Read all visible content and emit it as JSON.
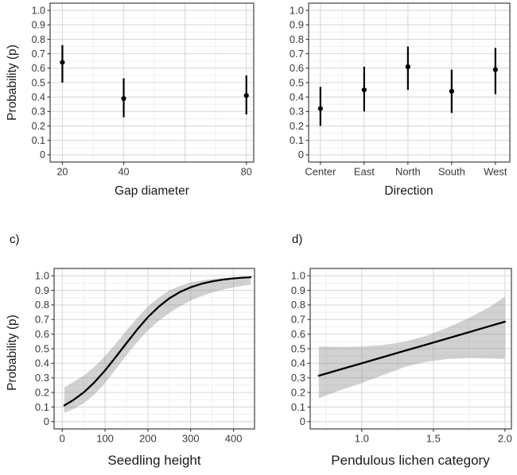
{
  "figure": {
    "background": "#ffffff",
    "border_color": "#4d4d4d",
    "grid_major_color": "#d9d9d9",
    "grid_minor_color": "#efefef",
    "tick_color": "#333333",
    "tick_label_color": "#383838",
    "data_color": "#000000",
    "ribbon_color": "#8c8c8c",
    "ribbon_opacity": 0.4
  },
  "chart_data": [
    {
      "id": "a",
      "type": "pointrange",
      "xlabel": "Gap diameter",
      "ylabel": "Probability (p)",
      "x": {
        "scale": "linear",
        "domain": [
          16,
          82.4
        ],
        "ticks": [
          20,
          40,
          80
        ],
        "tick_labels": [
          "20",
          "40",
          "80"
        ],
        "grid_major": [
          20,
          40,
          60,
          80
        ],
        "grid_minor": [
          30,
          50,
          70
        ]
      },
      "y": {
        "domain": [
          -0.05,
          1.05
        ],
        "ticks": [
          1.0,
          0.9,
          0.8,
          0.7,
          0.6,
          0.5,
          0.4,
          0.3,
          0.2,
          0.1,
          0
        ],
        "tick_labels": [
          "1.0",
          "0.9",
          "0.8",
          "0.7",
          "0.6",
          "0.5",
          "0.4",
          "0.3",
          "0.2",
          "0.1",
          "0"
        ],
        "grid_minor": [
          0.05,
          0.15,
          0.25,
          0.35,
          0.45,
          0.55,
          0.65,
          0.75,
          0.85,
          0.95
        ]
      },
      "points": [
        {
          "x": 20,
          "y": 0.64,
          "ymin": 0.5,
          "ymax": 0.76
        },
        {
          "x": 40,
          "y": 0.39,
          "ymin": 0.26,
          "ymax": 0.53
        },
        {
          "x": 80,
          "y": 0.41,
          "ymin": 0.28,
          "ymax": 0.55
        }
      ]
    },
    {
      "id": "b",
      "type": "pointrange",
      "xlabel": "Direction",
      "x": {
        "scale": "categorical",
        "domain": [
          0.73,
          5.33
        ],
        "ticks": [
          1,
          2,
          3,
          4,
          5
        ],
        "tick_labels": [
          "Center",
          "East",
          "North",
          "South",
          "West"
        ],
        "grid_major": [
          1,
          2,
          3,
          4,
          5
        ],
        "grid_minor": [
          1.5,
          2.5,
          3.5,
          4.5
        ]
      },
      "y": {
        "domain": [
          -0.05,
          1.05
        ],
        "ticks": [
          1.0,
          0.9,
          0.8,
          0.7,
          0.6,
          0.5,
          0.4,
          0.3,
          0.2,
          0.1,
          0
        ],
        "tick_labels": [
          "1.0",
          "0.9",
          "0.8",
          "0.7",
          "0.6",
          "0.5",
          "0.4",
          "0.3",
          "0.2",
          "0.1",
          "0"
        ],
        "grid_minor": [
          0.05,
          0.15,
          0.25,
          0.35,
          0.45,
          0.55,
          0.65,
          0.75,
          0.85,
          0.95
        ]
      },
      "points": [
        {
          "label": "Center",
          "x": 1,
          "y": 0.32,
          "ymin": 0.2,
          "ymax": 0.47
        },
        {
          "label": "East",
          "x": 2,
          "y": 0.45,
          "ymin": 0.3,
          "ymax": 0.61
        },
        {
          "label": "North",
          "x": 3,
          "y": 0.61,
          "ymin": 0.45,
          "ymax": 0.75
        },
        {
          "label": "South",
          "x": 4,
          "y": 0.44,
          "ymin": 0.29,
          "ymax": 0.59
        },
        {
          "label": "West",
          "x": 5,
          "y": 0.59,
          "ymin": 0.42,
          "ymax": 0.74
        }
      ]
    },
    {
      "id": "c",
      "panel_label": "c)",
      "type": "line_ribbon",
      "xlabel": "Seedling height",
      "ylabel": "Probability (p)",
      "x": {
        "scale": "linear",
        "domain": [
          -19,
          449
        ],
        "ticks": [
          0,
          100,
          200,
          300,
          400
        ],
        "tick_labels": [
          "0",
          "100",
          "200",
          "300",
          "400"
        ],
        "grid_major": [
          0,
          100,
          200,
          300,
          400
        ],
        "grid_minor": [
          50,
          150,
          250,
          350
        ]
      },
      "y": {
        "domain": [
          -0.05,
          1.05
        ],
        "ticks": [
          1.0,
          0.9,
          0.8,
          0.7,
          0.6,
          0.5,
          0.4,
          0.3,
          0.2,
          0.1,
          0
        ],
        "tick_labels": [
          "1.0",
          "0.9",
          "0.8",
          "0.7",
          "0.6",
          "0.5",
          "0.4",
          "0.3",
          "0.2",
          "0.1",
          "0"
        ],
        "grid_minor": [
          0.05,
          0.15,
          0.25,
          0.35,
          0.45,
          0.55,
          0.65,
          0.75,
          0.85,
          0.95
        ]
      },
      "line": {
        "x": [
          5,
          25,
          50,
          75,
          100,
          125,
          150,
          175,
          200,
          225,
          250,
          275,
          300,
          325,
          350,
          375,
          400,
          420,
          440
        ],
        "y": [
          0.111,
          0.146,
          0.2,
          0.269,
          0.351,
          0.443,
          0.538,
          0.631,
          0.716,
          0.787,
          0.845,
          0.889,
          0.921,
          0.945,
          0.962,
          0.974,
          0.982,
          0.987,
          0.99
        ],
        "lo": [
          0.06,
          0.085,
          0.125,
          0.185,
          0.265,
          0.36,
          0.455,
          0.545,
          0.625,
          0.69,
          0.745,
          0.79,
          0.83,
          0.86,
          0.885,
          0.905,
          0.92,
          0.93,
          0.94
        ],
        "hi": [
          0.235,
          0.27,
          0.315,
          0.375,
          0.45,
          0.535,
          0.625,
          0.71,
          0.79,
          0.85,
          0.9,
          0.93,
          0.955,
          0.968,
          0.978,
          0.984,
          0.988,
          0.99,
          0.995
        ]
      }
    },
    {
      "id": "d",
      "panel_label": "d)",
      "type": "line_ribbon",
      "xlabel": "Pendulous lichen category",
      "x": {
        "scale": "linear",
        "domain": [
          0.64,
          2.045
        ],
        "ticks": [
          1.0,
          1.5,
          2.0
        ],
        "tick_labels": [
          "1.0",
          "1.5",
          "2.0"
        ],
        "grid_major": [
          1.0,
          1.5,
          2.0
        ],
        "grid_minor": [
          0.75,
          1.25,
          1.75
        ]
      },
      "y": {
        "domain": [
          -0.05,
          1.05
        ],
        "ticks": [
          1.0,
          0.9,
          0.8,
          0.7,
          0.6,
          0.5,
          0.4,
          0.3,
          0.2,
          0.1,
          0
        ],
        "tick_labels": [
          "1.0",
          "0.9",
          "0.8",
          "0.7",
          "0.6",
          "0.5",
          "0.4",
          "0.3",
          "0.2",
          "0.1",
          "0"
        ],
        "grid_minor": [
          0.05,
          0.15,
          0.25,
          0.35,
          0.45,
          0.55,
          0.65,
          0.75,
          0.85,
          0.95
        ]
      },
      "line": {
        "x": [
          0.7,
          0.85,
          1.0,
          1.15,
          1.3,
          1.45,
          1.6,
          1.75,
          1.9,
          2.0
        ],
        "y": [
          0.315,
          0.358,
          0.4,
          0.443,
          0.486,
          0.528,
          0.571,
          0.614,
          0.657,
          0.685
        ],
        "lo": [
          0.16,
          0.215,
          0.265,
          0.32,
          0.375,
          0.41,
          0.43,
          0.435,
          0.433,
          0.43
        ],
        "hi": [
          0.515,
          0.512,
          0.515,
          0.525,
          0.548,
          0.588,
          0.645,
          0.712,
          0.79,
          0.858
        ]
      }
    }
  ]
}
